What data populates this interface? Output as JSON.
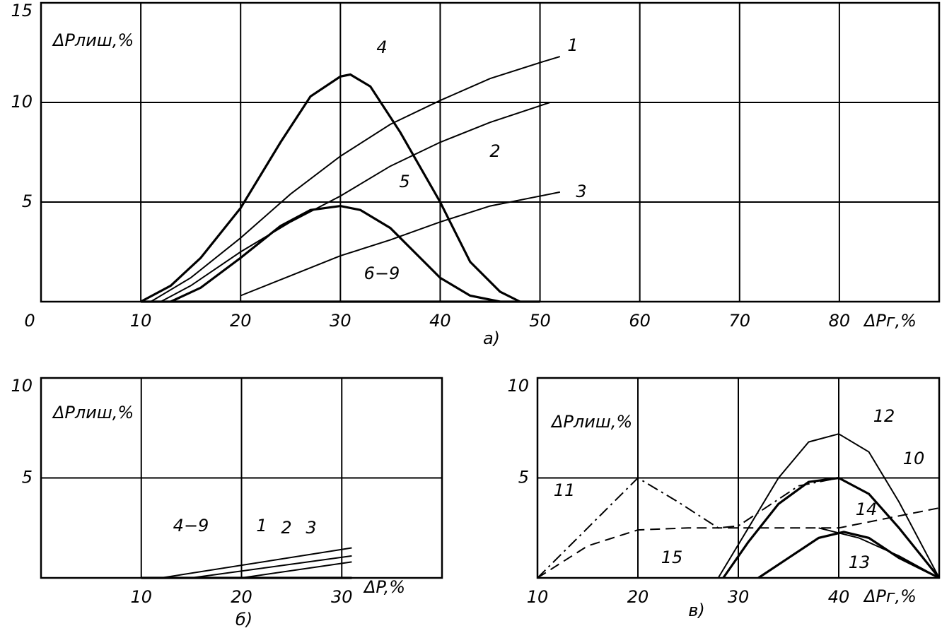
{
  "chart_data": [
    {
      "type": "line",
      "subtitle": "а)",
      "y_label": "ΔPлиш,%",
      "x_label": "ΔPг,%",
      "xlim": [
        0,
        90
      ],
      "ylim": [
        0,
        15
      ],
      "xticks": [
        0,
        10,
        20,
        30,
        40,
        50,
        60,
        70,
        80
      ],
      "yticks": [
        5,
        10,
        15
      ],
      "grid": true,
      "series": [
        {
          "name": "1",
          "color": "#000000",
          "dash": "solid",
          "x": [
            11,
            15,
            20,
            25,
            30,
            35,
            40,
            45,
            50,
            52
          ],
          "values": [
            0,
            1.2,
            3.2,
            5.4,
            7.3,
            8.9,
            10.1,
            11.2,
            12.0,
            12.3
          ]
        },
        {
          "name": "2",
          "color": "#000000",
          "dash": "solid",
          "x": [
            12,
            15,
            20,
            25,
            30,
            35,
            40,
            45,
            51
          ],
          "values": [
            0,
            0.8,
            2.5,
            4.0,
            5.3,
            6.8,
            8.0,
            9.0,
            10.0
          ]
        },
        {
          "name": "3",
          "color": "#000000",
          "dash": "solid",
          "x": [
            20,
            25,
            30,
            35,
            40,
            45,
            52
          ],
          "values": [
            0.3,
            1.3,
            2.3,
            3.1,
            4.0,
            4.8,
            5.5
          ]
        },
        {
          "name": "4",
          "color": "#000000",
          "dash": "bold",
          "x": [
            10,
            13,
            16,
            20,
            24,
            27,
            30,
            31,
            33,
            36,
            40,
            43,
            46,
            48
          ],
          "values": [
            0,
            0.8,
            2.2,
            4.7,
            8.0,
            10.3,
            11.3,
            11.4,
            10.8,
            8.5,
            5.0,
            2.0,
            0.5,
            0
          ]
        },
        {
          "name": "5",
          "color": "#000000",
          "dash": "bold",
          "x": [
            13,
            16,
            20,
            24,
            27,
            30,
            32,
            35,
            38,
            40,
            43,
            46
          ],
          "values": [
            0,
            0.7,
            2.2,
            3.8,
            4.6,
            4.8,
            4.6,
            3.7,
            2.2,
            1.2,
            0.3,
            0
          ]
        },
        {
          "name": "6−9",
          "color": "#000000",
          "dash": "bold",
          "x": [
            10,
            50
          ],
          "values": [
            0,
            0
          ]
        }
      ]
    },
    {
      "type": "line",
      "subtitle": "б)",
      "y_label": "ΔPлиш,%",
      "x_label": "ΔP,%",
      "xlim": [
        0,
        40
      ],
      "ylim": [
        0,
        10
      ],
      "xticks": [
        10,
        20,
        30
      ],
      "yticks": [
        5,
        10
      ],
      "grid": true,
      "series": [
        {
          "name": "1",
          "color": "#000000",
          "dash": "solid",
          "x": [
            12,
            31
          ],
          "values": [
            0,
            1.5
          ]
        },
        {
          "name": "2",
          "color": "#000000",
          "dash": "solid",
          "x": [
            15,
            31
          ],
          "values": [
            0,
            1.1
          ]
        },
        {
          "name": "3",
          "color": "#000000",
          "dash": "solid",
          "x": [
            20,
            31
          ],
          "values": [
            0,
            0.8
          ]
        },
        {
          "name": "4−9",
          "color": "#000000",
          "dash": "bold",
          "x": [
            10,
            31
          ],
          "values": [
            0,
            0
          ]
        }
      ]
    },
    {
      "type": "line",
      "subtitle": "в)",
      "y_label": "ΔPлиш,%",
      "x_label": "ΔPг,%",
      "xlim": [
        10,
        50
      ],
      "ylim": [
        0,
        10
      ],
      "xticks": [
        10,
        20,
        30,
        40
      ],
      "yticks": [
        5,
        10
      ],
      "grid": true,
      "series": [
        {
          "name": "12",
          "color": "#000000",
          "dash": "solid",
          "x": [
            28,
            31,
            34,
            37,
            40,
            43,
            46,
            50
          ],
          "values": [
            0,
            2.5,
            5.0,
            6.8,
            7.2,
            6.3,
            3.8,
            0
          ]
        },
        {
          "name": "10",
          "color": "#000000",
          "dash": "bold",
          "x": [
            28.5,
            31,
            34,
            37,
            40,
            43,
            46,
            50
          ],
          "values": [
            0,
            1.8,
            3.7,
            4.8,
            5.0,
            4.2,
            2.5,
            0
          ]
        },
        {
          "name": "11",
          "color": "#000000",
          "dash": "dashdot",
          "x": [
            10,
            15,
            20,
            24,
            28,
            30,
            33,
            36,
            40
          ],
          "values": [
            0,
            2.5,
            5.0,
            3.8,
            2.5,
            2.6,
            3.6,
            4.6,
            5.0
          ]
        },
        {
          "name": "14",
          "color": "#000000",
          "dash": "solid",
          "x": [
            38,
            42,
            46,
            50
          ],
          "values": [
            2.5,
            2.0,
            1.1,
            0
          ]
        },
        {
          "name": "15",
          "color": "#000000",
          "dash": "dashed",
          "x": [
            10,
            15,
            20,
            25,
            30,
            35,
            40,
            45,
            50
          ],
          "values": [
            0,
            1.6,
            2.4,
            2.5,
            2.5,
            2.5,
            2.5,
            3.0,
            3.5
          ]
        },
        {
          "name": "13",
          "color": "#000000",
          "dash": "bold",
          "x": [
            32,
            35,
            38,
            40.5,
            43,
            46,
            50
          ],
          "values": [
            0,
            1.0,
            2.0,
            2.3,
            2.0,
            1.0,
            0
          ]
        }
      ]
    }
  ]
}
